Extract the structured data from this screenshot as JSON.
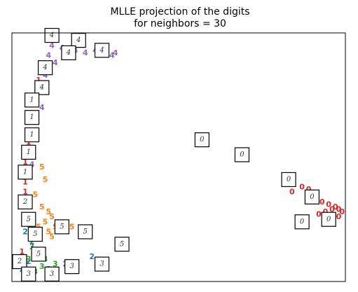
{
  "chart_data": {
    "type": "scatter",
    "title_line1": "MLLE projection of the digits",
    "title_line2": "for neighbors = 30",
    "xlim": [
      0,
      1
    ],
    "ylim": [
      0,
      1
    ],
    "grid": false,
    "ticks_visible": false,
    "class_colors": {
      "0": "#d62728",
      "1": "#d62728",
      "2": "#1f77b4",
      "3": "#2ca02c",
      "4": "#9467bd",
      "5": "#ff7f0e"
    },
    "points": [
      {
        "label": "4",
        "x": 0.12,
        "y": 0.95
      },
      {
        "label": "4",
        "x": 0.15,
        "y": 0.94
      },
      {
        "label": "4",
        "x": 0.19,
        "y": 0.93
      },
      {
        "label": "4",
        "x": 0.22,
        "y": 0.92
      },
      {
        "label": "4",
        "x": 0.25,
        "y": 0.93
      },
      {
        "label": "4",
        "x": 0.3,
        "y": 0.91
      },
      {
        "label": "4",
        "x": 0.31,
        "y": 0.92
      },
      {
        "label": "4",
        "x": 0.11,
        "y": 0.91
      },
      {
        "label": "4",
        "x": 0.13,
        "y": 0.88
      },
      {
        "label": "4",
        "x": 0.1,
        "y": 0.83
      },
      {
        "label": "4",
        "x": 0.09,
        "y": 0.77
      },
      {
        "label": "4",
        "x": 0.09,
        "y": 0.7
      },
      {
        "label": "4",
        "x": 0.06,
        "y": 0.47
      },
      {
        "label": "1",
        "x": 0.08,
        "y": 0.81
      },
      {
        "label": "1",
        "x": 0.07,
        "y": 0.74
      },
      {
        "label": "1",
        "x": 0.06,
        "y": 0.65
      },
      {
        "label": "1",
        "x": 0.05,
        "y": 0.56
      },
      {
        "label": "1",
        "x": 0.04,
        "y": 0.48
      },
      {
        "label": "1",
        "x": 0.04,
        "y": 0.4
      },
      {
        "label": "1",
        "x": 0.04,
        "y": 0.36
      },
      {
        "label": "1",
        "x": 0.03,
        "y": 0.12
      },
      {
        "label": "5",
        "x": 0.09,
        "y": 0.46
      },
      {
        "label": "5",
        "x": 0.1,
        "y": 0.41
      },
      {
        "label": "5",
        "x": 0.07,
        "y": 0.35
      },
      {
        "label": "5",
        "x": 0.09,
        "y": 0.3
      },
      {
        "label": "5",
        "x": 0.11,
        "y": 0.28
      },
      {
        "label": "5",
        "x": 0.12,
        "y": 0.26
      },
      {
        "label": "5",
        "x": 0.1,
        "y": 0.24
      },
      {
        "label": "5",
        "x": 0.13,
        "y": 0.22
      },
      {
        "label": "5",
        "x": 0.11,
        "y": 0.2
      },
      {
        "label": "5",
        "x": 0.08,
        "y": 0.22
      },
      {
        "label": "5",
        "x": 0.12,
        "y": 0.18
      },
      {
        "label": "5",
        "x": 0.18,
        "y": 0.22
      },
      {
        "label": "0",
        "x": 0.84,
        "y": 0.36
      },
      {
        "label": "0",
        "x": 0.87,
        "y": 0.38
      },
      {
        "label": "0",
        "x": 0.89,
        "y": 0.37
      },
      {
        "label": "0",
        "x": 0.91,
        "y": 0.35
      },
      {
        "label": "0",
        "x": 0.93,
        "y": 0.32
      },
      {
        "label": "0",
        "x": 0.95,
        "y": 0.31
      },
      {
        "label": "0",
        "x": 0.96,
        "y": 0.29
      },
      {
        "label": "0",
        "x": 0.97,
        "y": 0.3
      },
      {
        "label": "0",
        "x": 0.98,
        "y": 0.29
      },
      {
        "label": "0",
        "x": 0.99,
        "y": 0.28
      },
      {
        "label": "0",
        "x": 0.94,
        "y": 0.28
      },
      {
        "label": "0",
        "x": 0.92,
        "y": 0.27
      },
      {
        "label": "0",
        "x": 0.98,
        "y": 0.26
      },
      {
        "label": "2",
        "x": 0.04,
        "y": 0.2
      },
      {
        "label": "2",
        "x": 0.06,
        "y": 0.16
      },
      {
        "label": "2",
        "x": 0.05,
        "y": 0.08
      },
      {
        "label": "2",
        "x": 0.16,
        "y": 0.07
      },
      {
        "label": "2",
        "x": 0.24,
        "y": 0.1
      },
      {
        "label": "2",
        "x": 0.03,
        "y": 0.05
      },
      {
        "label": "3",
        "x": 0.06,
        "y": 0.14
      },
      {
        "label": "3",
        "x": 0.08,
        "y": 0.11
      },
      {
        "label": "3",
        "x": 0.05,
        "y": 0.09
      },
      {
        "label": "3",
        "x": 0.09,
        "y": 0.06
      },
      {
        "label": "3",
        "x": 0.07,
        "y": 0.04
      },
      {
        "label": "3",
        "x": 0.11,
        "y": 0.05
      },
      {
        "label": "3",
        "x": 0.13,
        "y": 0.07
      },
      {
        "label": "3",
        "x": 0.1,
        "y": 0.09
      }
    ],
    "thumbnails": [
      {
        "label": "4",
        "x": 0.12,
        "y": 0.99
      },
      {
        "label": "4",
        "x": 0.2,
        "y": 0.97
      },
      {
        "label": "4",
        "x": 0.17,
        "y": 0.92
      },
      {
        "label": "4",
        "x": 0.27,
        "y": 0.93
      },
      {
        "label": "4",
        "x": 0.1,
        "y": 0.86
      },
      {
        "label": "4",
        "x": 0.09,
        "y": 0.78
      },
      {
        "label": "1",
        "x": 0.06,
        "y": 0.73
      },
      {
        "label": "1",
        "x": 0.06,
        "y": 0.66
      },
      {
        "label": "1",
        "x": 0.06,
        "y": 0.59
      },
      {
        "label": "1",
        "x": 0.05,
        "y": 0.52
      },
      {
        "label": "1",
        "x": 0.04,
        "y": 0.44
      },
      {
        "label": "2",
        "x": 0.04,
        "y": 0.32
      },
      {
        "label": "5",
        "x": 0.05,
        "y": 0.25
      },
      {
        "label": "5",
        "x": 0.07,
        "y": 0.19
      },
      {
        "label": "5",
        "x": 0.15,
        "y": 0.22
      },
      {
        "label": "5",
        "x": 0.22,
        "y": 0.2
      },
      {
        "label": "5",
        "x": 0.33,
        "y": 0.15
      },
      {
        "label": "5",
        "x": 0.08,
        "y": 0.11
      },
      {
        "label": "2",
        "x": 0.01,
        "y": 0.08
      },
      {
        "label": "3",
        "x": 0.05,
        "y": 0.03
      },
      {
        "label": "3",
        "x": 0.12,
        "y": 0.03
      },
      {
        "label": "3",
        "x": 0.18,
        "y": 0.06
      },
      {
        "label": "3",
        "x": 0.27,
        "y": 0.07
      },
      {
        "label": "0",
        "x": 0.57,
        "y": 0.57
      },
      {
        "label": "0",
        "x": 0.69,
        "y": 0.51
      },
      {
        "label": "0",
        "x": 0.83,
        "y": 0.41
      },
      {
        "label": "0",
        "x": 0.9,
        "y": 0.34
      },
      {
        "label": "0",
        "x": 0.87,
        "y": 0.24
      },
      {
        "label": "0",
        "x": 0.95,
        "y": 0.25
      }
    ]
  }
}
